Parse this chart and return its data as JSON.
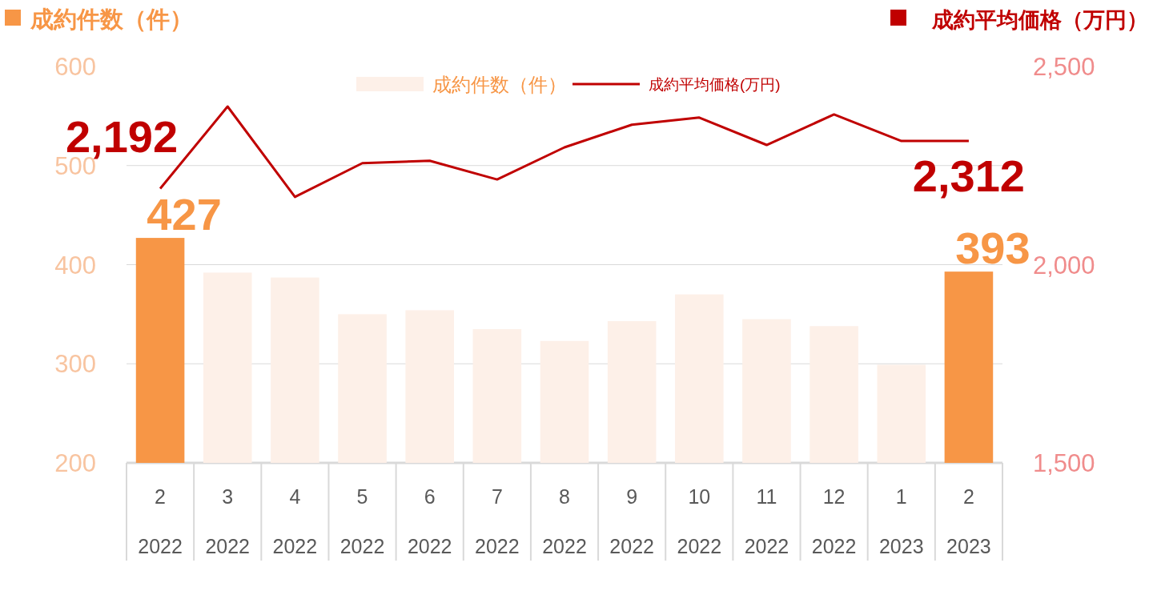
{
  "chart_data": {
    "type": "bar",
    "ylabel": "成約件数（件）",
    "y2label": "成約平均価格（万円）",
    "categories": [
      "2\n2022",
      "3\n2022",
      "4\n2022",
      "5\n2022",
      "6\n2022",
      "7\n2022",
      "8\n2022",
      "9\n2022",
      "10\n2022",
      "11\n2022",
      "12\n2022",
      "1\n2023",
      "2\n2023"
    ],
    "series": [
      {
        "name": "成約件数（件）",
        "color": "#fdf0e8",
        "colors": [
          "#f79646",
          "#fdf0e8",
          "#fdf0e8",
          "#fdf0e8",
          "#fdf0e8",
          "#fdf0e8",
          "#fdf0e8",
          "#fdf0e8",
          "#fdf0e8",
          "#fdf0e8",
          "#fdf0e8",
          "#fdf0e8",
          "#f79646"
        ],
        "values": [
          427,
          392,
          387,
          350,
          354,
          335,
          323,
          343,
          370,
          345,
          338,
          299,
          393
        ],
        "value_labels": [
          "427",
          null,
          null,
          null,
          null,
          null,
          null,
          null,
          null,
          null,
          null,
          null,
          "393"
        ]
      },
      {
        "type": "line",
        "axis": "y2",
        "name": "成約平均価格(万円)",
        "color": "#c00000",
        "values": [
          2192,
          2399,
          2171,
          2256,
          2262,
          2215,
          2296,
          2353,
          2371,
          2302,
          2379,
          2312,
          2312
        ],
        "value_labels": [
          "2,192",
          null,
          null,
          null,
          null,
          null,
          null,
          null,
          null,
          null,
          null,
          null,
          "2,312"
        ]
      }
    ],
    "ylim": [
      200,
      600
    ],
    "yticks": [
      200,
      300,
      400,
      500,
      600
    ],
    "y2lim": [
      1500,
      2500
    ],
    "y2ticks": [
      {
        "value": 1500,
        "label": "1,500"
      },
      {
        "value": 2000,
        "label": "2,000"
      },
      {
        "value": 2500,
        "label": "2,500"
      }
    ],
    "grid": "y",
    "legend": "top"
  }
}
